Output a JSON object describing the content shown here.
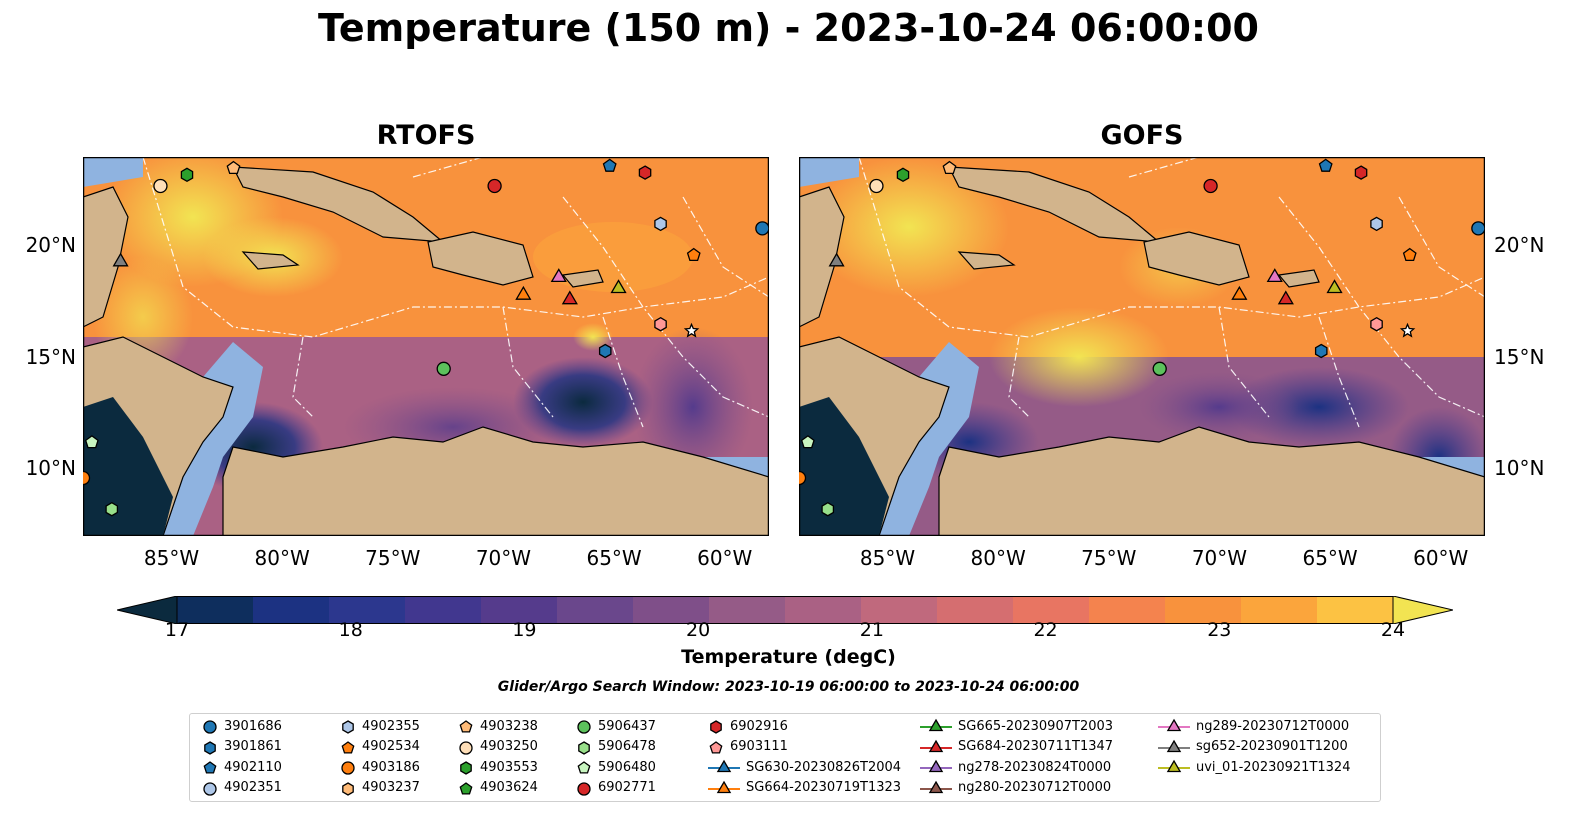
{
  "title": "Temperature (150 m) - 2023-10-24 06:00:00",
  "panels": [
    {
      "title": "RTOFS"
    },
    {
      "title": "GOFS"
    }
  ],
  "axes": {
    "lon_range": [
      -89,
      -58
    ],
    "lat_range": [
      7,
      24
    ],
    "lon_ticks": [
      "85°W",
      "80°W",
      "75°W",
      "70°W",
      "65°W",
      "60°W"
    ],
    "lat_ticks": [
      "20°N",
      "15°N",
      "10°N"
    ]
  },
  "colorbar": {
    "label": "Temperature (degC)",
    "range": [
      16.5,
      24.5
    ],
    "step": 0.5,
    "ticks": [
      "17",
      "18",
      "19",
      "20",
      "21",
      "22",
      "23",
      "24"
    ],
    "colors": [
      "#0b2a3e",
      "#0e2e5d",
      "#1c3282",
      "#2c378e",
      "#41378f",
      "#553b8c",
      "#6a478c",
      "#7f4f89",
      "#955b87",
      "#aa6184",
      "#c0697d",
      "#d56e70",
      "#e87562",
      "#f4834e",
      "#f8923d",
      "#fba53c",
      "#fcc243",
      "#f2e452"
    ]
  },
  "search_window": "Glider/Argo Search Window: 2023-10-19 06:00:00 to 2023-10-24 06:00:00",
  "legend": [
    {
      "label": "3901686",
      "marker": "circle",
      "color": "#1f77b4"
    },
    {
      "label": "3901861",
      "marker": "hexagon",
      "color": "#1f77b4"
    },
    {
      "label": "4902110",
      "marker": "pentagon",
      "color": "#1f77b4"
    },
    {
      "label": "4902351",
      "marker": "circle",
      "color": "#aec7e8"
    },
    {
      "label": "4902355",
      "marker": "hexagon",
      "color": "#aec7e8"
    },
    {
      "label": "4902534",
      "marker": "pentagon",
      "color": "#ff7f0e"
    },
    {
      "label": "4903186",
      "marker": "circle",
      "color": "#ff7f0e"
    },
    {
      "label": "4903237",
      "marker": "hexagon",
      "color": "#ffbb78"
    },
    {
      "label": "4903238",
      "marker": "pentagon",
      "color": "#ffbb78"
    },
    {
      "label": "4903250",
      "marker": "circle",
      "color": "#ffdfb8"
    },
    {
      "label": "4903553",
      "marker": "hexagon",
      "color": "#2ca02c"
    },
    {
      "label": "4903624",
      "marker": "pentagon",
      "color": "#2ca02c"
    },
    {
      "label": "5906437",
      "marker": "circle",
      "color": "#5cc15c"
    },
    {
      "label": "5906478",
      "marker": "hexagon",
      "color": "#98df8a"
    },
    {
      "label": "5906480",
      "marker": "pentagon",
      "color": "#c8f5c0"
    },
    {
      "label": "6902771",
      "marker": "circle",
      "color": "#d62728"
    },
    {
      "label": "6902916",
      "marker": "hexagon",
      "color": "#d62728"
    },
    {
      "label": "6903111",
      "marker": "pentagon",
      "color": "#ff9896"
    },
    {
      "label": "SG630-20230826T2004",
      "marker": "triangle-line",
      "color": "#1f77b4"
    },
    {
      "label": "SG664-20230719T1323",
      "marker": "triangle-line",
      "color": "#ff7f0e"
    },
    {
      "label": "SG665-20230907T2003",
      "marker": "triangle-line",
      "color": "#2ca02c"
    },
    {
      "label": "SG684-20230711T1347",
      "marker": "triangle-line",
      "color": "#d62728"
    },
    {
      "label": "ng278-20230824T0000",
      "marker": "triangle-line",
      "color": "#9467bd"
    },
    {
      "label": "ng280-20230712T0000",
      "marker": "triangle-line",
      "color": "#8c564b"
    },
    {
      "label": "ng289-20230712T0000",
      "marker": "triangle-line",
      "color": "#e377c2"
    },
    {
      "label": "sg652-20230901T1200",
      "marker": "triangle-line",
      "color": "#7f7f7f"
    },
    {
      "label": "uvi_01-20230921T1324",
      "marker": "triangle-line",
      "color": "#bcbd22"
    }
  ],
  "platforms": [
    {
      "marker": "circle",
      "color": "#ffdfb8",
      "lon": -85.5,
      "lat": 22.7
    },
    {
      "marker": "hexagon",
      "color": "#2ca02c",
      "lon": -84.3,
      "lat": 23.2
    },
    {
      "marker": "pentagon",
      "color": "#ffbb78",
      "lon": -82.2,
      "lat": 23.5
    },
    {
      "marker": "circle",
      "color": "#d62728",
      "lon": -70.4,
      "lat": 22.7
    },
    {
      "marker": "pentagon",
      "color": "#1f77b4",
      "lon": -65.2,
      "lat": 23.6
    },
    {
      "marker": "hexagon",
      "color": "#d62728",
      "lon": -63.6,
      "lat": 23.3
    },
    {
      "marker": "hexagon",
      "color": "#aec7e8",
      "lon": -62.9,
      "lat": 21.0
    },
    {
      "marker": "circle",
      "color": "#1f77b4",
      "lon": -58.3,
      "lat": 20.8
    },
    {
      "marker": "pentagon",
      "color": "#ff7f0e",
      "lon": -61.4,
      "lat": 19.6
    },
    {
      "marker": "triangle",
      "color": "#7f7f7f",
      "lon": -87.3,
      "lat": 19.3
    },
    {
      "marker": "triangle",
      "color": "#e377c2",
      "lon": -67.5,
      "lat": 18.6
    },
    {
      "marker": "triangle",
      "color": "#ff7f0e",
      "lon": -69.1,
      "lat": 17.8
    },
    {
      "marker": "triangle",
      "color": "#d62728",
      "lon": -67.0,
      "lat": 17.6
    },
    {
      "marker": "triangle",
      "color": "#bcbd22",
      "lon": -64.8,
      "lat": 18.1
    },
    {
      "marker": "hexagon",
      "color": "#ff9896",
      "lon": -62.9,
      "lat": 16.5
    },
    {
      "marker": "star",
      "color": "#ffffff",
      "lon": -61.5,
      "lat": 16.2
    },
    {
      "marker": "hexagon",
      "color": "#1f77b4",
      "lon": -65.4,
      "lat": 15.3
    },
    {
      "marker": "circle",
      "color": "#5cc15c",
      "lon": -72.7,
      "lat": 14.5
    },
    {
      "marker": "pentagon",
      "color": "#c8f5c0",
      "lon": -88.6,
      "lat": 11.2
    },
    {
      "marker": "circle",
      "color": "#ff7f0e",
      "lon": -89.0,
      "lat": 9.6
    },
    {
      "marker": "hexagon",
      "color": "#98df8a",
      "lon": -87.7,
      "lat": 8.2
    }
  ],
  "colors": {
    "land": "#d2b48c",
    "shelf": "#8fb3e0",
    "eez_lines": "#ffffff",
    "coastline": "#000000"
  }
}
